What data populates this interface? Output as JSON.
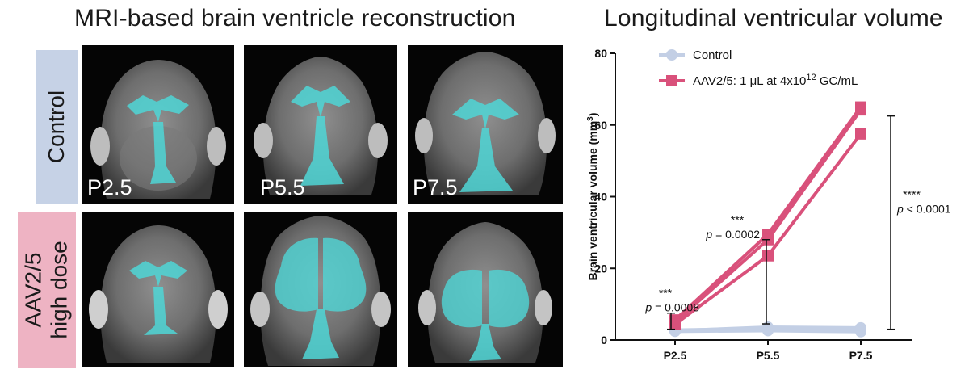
{
  "figure": {
    "left_title": "MRI-based brain ventricle reconstruction",
    "right_title": "Longitudinal ventricular volume"
  },
  "rows": [
    {
      "label_lines": [
        "Control"
      ],
      "color": "#c6d2e6"
    },
    {
      "label_lines": [
        "AAV2/5",
        "high dose"
      ],
      "color": "#eeb3c3"
    }
  ],
  "timepoints": [
    "P2.5",
    "P5.5",
    "P7.5"
  ],
  "colors": {
    "control": "#c3cfe5",
    "aav": "#d9517b",
    "ventricle": "#4fd6d6",
    "background": "#050505"
  },
  "chart_data": {
    "type": "line",
    "categories": [
      "P2.5",
      "P5.5",
      "P7.5"
    ],
    "ylabel": "Brain ventricular volume (mm",
    "ylabel_sup": "3",
    "ylabel_end": ")",
    "ylim": [
      0,
      80
    ],
    "yticks": [
      0,
      20,
      40,
      60,
      80
    ],
    "legend": {
      "position": "top-left",
      "entries": [
        {
          "text": "Control",
          "series": "control",
          "marker": "circle"
        },
        {
          "text": "AAV2/5: 1 μL at 4x10",
          "sup": "12",
          "text_end": " GC/mL",
          "series": "aav",
          "marker": "square"
        }
      ]
    },
    "series": [
      {
        "name": "Control",
        "group": "control",
        "values": [
          2.6,
          3.6,
          3.4
        ]
      },
      {
        "name": "Control",
        "group": "control",
        "values": [
          2.8,
          3.2,
          3.0
        ]
      },
      {
        "name": "Control",
        "group": "control",
        "values": [
          2.4,
          2.6,
          2.3
        ]
      },
      {
        "name": "AAV2/5: 1 μL at 4x10^12 GC/mL",
        "group": "aav",
        "values": [
          5.6,
          29.5,
          65.0
        ]
      },
      {
        "name": "AAV2/5: 1 μL at 4x10^12 GC/mL",
        "group": "aav",
        "values": [
          5.0,
          28.0,
          64.2
        ]
      },
      {
        "name": "AAV2/5: 1 μL at 4x10^12 GC/mL",
        "group": "aav",
        "values": [
          4.4,
          23.5,
          57.5
        ]
      }
    ],
    "annotations": [
      {
        "category": "P2.5",
        "from": 3.0,
        "to": 7.5,
        "stars": "***",
        "p_prefix": "p",
        "p_text": " = 0.0008",
        "side": "left"
      },
      {
        "category": "P5.5",
        "from": 4.5,
        "to": 28.0,
        "stars": "***",
        "p_prefix": "p",
        "p_text": " = 0.0002",
        "side": "left"
      },
      {
        "category": "P7.5",
        "from": 3.0,
        "to": 62.5,
        "stars": "****",
        "p_prefix": "p",
        "p_text": " < 0.0001",
        "side": "right"
      }
    ]
  }
}
